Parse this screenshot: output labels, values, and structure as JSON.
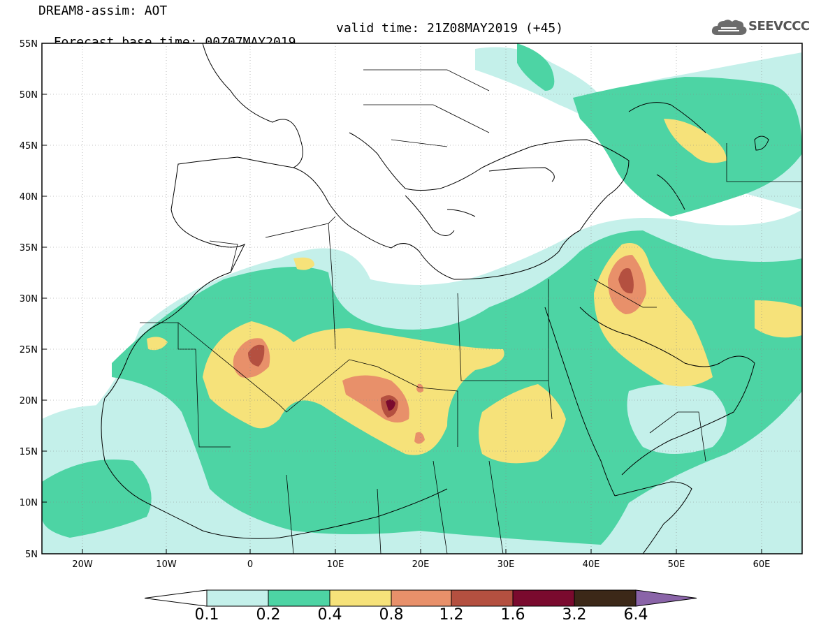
{
  "header": {
    "line1": "DREAM8-assim: AOT",
    "line2_left": "Forecast base time: 00Z07MAY2019",
    "line2_right": "valid time: 21Z08MAY2019 (+45)"
  },
  "logo": {
    "text": "SEEVCCC",
    "icon": "cloud-icon"
  },
  "map": {
    "region": {
      "lon_range": [
        -25,
        65
      ],
      "lat_range": [
        5,
        55
      ]
    },
    "lat_labels": [
      "55N",
      "50N",
      "45N",
      "40N",
      "35N",
      "30N",
      "25N",
      "20N",
      "15N",
      "10N",
      "5N"
    ],
    "lon_labels": [
      "20W",
      "10W",
      "0",
      "10E",
      "20E",
      "30E",
      "40E",
      "50E",
      "60E"
    ],
    "grid": "dotted"
  },
  "colorbar": {
    "levels": [
      "0.1",
      "0.2",
      "0.4",
      "0.8",
      "1.2",
      "1.6",
      "3.2",
      "6.4"
    ],
    "colors": [
      "#ffffff",
      "#c4f0ea",
      "#4dd4a4",
      "#f6e27a",
      "#e8906a",
      "#b45040",
      "#7a0a2e",
      "#3c2818",
      "#8a64a8"
    ]
  }
}
